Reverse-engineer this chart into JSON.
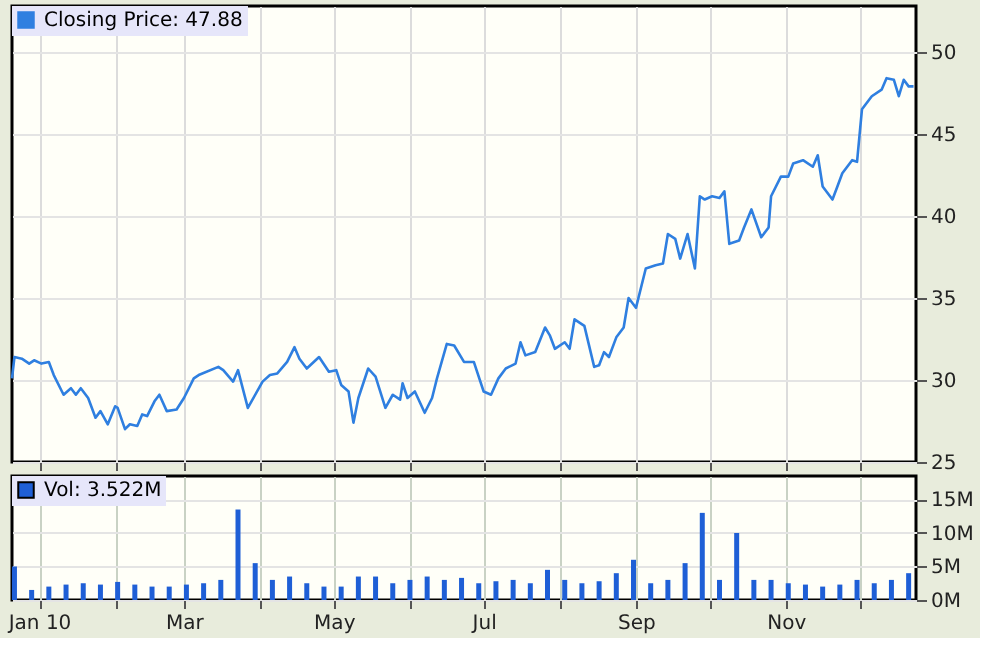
{
  "chart_data": [
    {
      "type": "line",
      "xlim": [
        "2009-12-21",
        "2010-12-24"
      ],
      "ylim": [
        25,
        52.8
      ],
      "yticks": [
        25,
        30,
        35,
        40,
        45,
        50
      ],
      "xticks": [
        {
          "value": "2010-01-01",
          "label": null
        },
        {
          "value": "2010-02-01",
          "label": null
        },
        {
          "value": "2010-03-01",
          "label": null
        },
        {
          "value": "2010-04-01",
          "label": null
        },
        {
          "value": "2010-05-01",
          "label": null
        },
        {
          "value": "2010-06-01",
          "label": null
        },
        {
          "value": "2010-07-01",
          "label": null
        },
        {
          "value": "2010-08-01",
          "label": null
        },
        {
          "value": "2010-09-01",
          "label": null
        },
        {
          "value": "2010-10-01",
          "label": null
        },
        {
          "value": "2010-11-01",
          "label": null
        },
        {
          "value": "2010-12-01",
          "label": null
        }
      ],
      "tick_labels": "y",
      "grid": true,
      "legend": "top left",
      "x": [
        "2009-12-21",
        "2009-12-22",
        "2009-12-25",
        "2009-12-28",
        "2009-12-30",
        "2010-01-02",
        "2010-01-05",
        "2010-01-07",
        "2010-01-11",
        "2010-01-14",
        "2010-01-16",
        "2010-01-18",
        "2010-01-21",
        "2010-01-24",
        "2010-01-26",
        "2010-01-29",
        "2010-02-01",
        "2010-02-02",
        "2010-02-05",
        "2010-02-07",
        "2010-02-10",
        "2010-02-12",
        "2010-02-14",
        "2010-02-17",
        "2010-02-19",
        "2010-02-22",
        "2010-02-26",
        "2010-03-01",
        "2010-03-05",
        "2010-03-07",
        "2010-03-15",
        "2010-03-17",
        "2010-03-21",
        "2010-03-23",
        "2010-03-27",
        "2010-04-02",
        "2010-04-05",
        "2010-04-08",
        "2010-04-12",
        "2010-04-15",
        "2010-04-17",
        "2010-04-20",
        "2010-04-25",
        "2010-04-29",
        "2010-05-02",
        "2010-05-04",
        "2010-05-07",
        "2010-05-09",
        "2010-05-11",
        "2010-05-15",
        "2010-05-18",
        "2010-05-22",
        "2010-05-25",
        "2010-05-28",
        "2010-05-29",
        "2010-05-31",
        "2010-06-03",
        "2010-06-07",
        "2010-06-10",
        "2010-06-12",
        "2010-06-16",
        "2010-06-19",
        "2010-06-23",
        "2010-06-27",
        "2010-07-01",
        "2010-07-04",
        "2010-07-07",
        "2010-07-10",
        "2010-07-14",
        "2010-07-16",
        "2010-07-18",
        "2010-07-22",
        "2010-07-26",
        "2010-07-28",
        "2010-07-30",
        "2010-08-03",
        "2010-08-05",
        "2010-08-07",
        "2010-08-11",
        "2010-08-15",
        "2010-08-17",
        "2010-08-19",
        "2010-08-21",
        "2010-08-24",
        "2010-08-27",
        "2010-08-29",
        "2010-09-01",
        "2010-09-05",
        "2010-09-09",
        "2010-09-12",
        "2010-09-14",
        "2010-09-17",
        "2010-09-19",
        "2010-09-22",
        "2010-09-25",
        "2010-09-27",
        "2010-09-29",
        "2010-10-02",
        "2010-10-05",
        "2010-10-07",
        "2010-10-09",
        "2010-10-13",
        "2010-10-15",
        "2010-10-18",
        "2010-10-22",
        "2010-10-25",
        "2010-10-26",
        "2010-10-30",
        "2010-11-02",
        "2010-11-04",
        "2010-11-08",
        "2010-11-12",
        "2010-11-14",
        "2010-11-16",
        "2010-11-20",
        "2010-11-22",
        "2010-11-24",
        "2010-11-28",
        "2010-11-30",
        "2010-12-02",
        "2010-12-06",
        "2010-12-10",
        "2010-12-12",
        "2010-12-15",
        "2010-12-17",
        "2010-12-19",
        "2010-12-21",
        "2010-12-23"
      ],
      "series": [
        {
          "name": "Closing Price: 47.88",
          "color": "#2f7fe0",
          "values": [
            30.1,
            31.4,
            31.3,
            31.0,
            31.2,
            31.0,
            31.1,
            30.3,
            29.1,
            29.5,
            29.1,
            29.5,
            28.9,
            27.7,
            28.1,
            27.3,
            28.4,
            28.3,
            27.0,
            27.3,
            27.2,
            27.9,
            27.8,
            28.7,
            29.1,
            28.1,
            28.2,
            28.9,
            30.1,
            30.3,
            30.8,
            30.6,
            29.9,
            30.6,
            28.3,
            29.9,
            30.3,
            30.4,
            31.1,
            32.0,
            31.3,
            30.7,
            31.4,
            30.5,
            30.6,
            29.7,
            29.3,
            27.4,
            28.9,
            30.7,
            30.2,
            28.3,
            29.1,
            28.8,
            29.8,
            28.9,
            29.3,
            28.0,
            28.9,
            30.1,
            32.2,
            32.1,
            31.1,
            31.1,
            29.3,
            29.1,
            30.1,
            30.7,
            31.0,
            32.3,
            31.5,
            31.7,
            33.2,
            32.7,
            31.9,
            32.3,
            31.9,
            33.7,
            33.3,
            30.8,
            30.9,
            31.7,
            31.4,
            32.6,
            33.2,
            35.0,
            34.4,
            36.8,
            37.0,
            37.1,
            38.9,
            38.6,
            37.4,
            38.9,
            36.8,
            41.2,
            41.0,
            41.2,
            41.1,
            41.5,
            38.3,
            38.5,
            39.3,
            40.4,
            38.7,
            39.3,
            41.2,
            42.4,
            42.4,
            43.2,
            43.4,
            43.0,
            43.7,
            41.8,
            41.0,
            41.8,
            42.6,
            43.4,
            43.3,
            46.5,
            47.3,
            47.7,
            48.4,
            48.3,
            47.3,
            48.3,
            47.9,
            47.9
          ]
        }
      ]
    },
    {
      "type": "bar",
      "xlim": [
        "2009-12-21",
        "2010-12-24"
      ],
      "ylim": [
        0,
        18.5
      ],
      "yticks": [
        {
          "value": 0,
          "label": "0M"
        },
        {
          "value": 5,
          "label": "5M"
        },
        {
          "value": 10,
          "label": "10M"
        },
        {
          "value": 15,
          "label": "15M"
        }
      ],
      "xticks": [
        {
          "value": "2010-01-01",
          "label": "Jan 10"
        },
        {
          "value": "2010-02-01",
          "label": null
        },
        {
          "value": "2010-03-01",
          "label": "Mar"
        },
        {
          "value": "2010-04-01",
          "label": null
        },
        {
          "value": "2010-05-01",
          "label": "May"
        },
        {
          "value": "2010-06-01",
          "label": null
        },
        {
          "value": "2010-07-01",
          "label": "Jul"
        },
        {
          "value": "2010-08-01",
          "label": null
        },
        {
          "value": "2010-09-01",
          "label": "Sep"
        },
        {
          "value": "2010-10-01",
          "label": null
        },
        {
          "value": "2010-11-01",
          "label": "Nov"
        },
        {
          "value": "2010-12-01",
          "label": null
        }
      ],
      "grid": true,
      "legend": "top left",
      "x": [
        "2009-12-22",
        "2009-12-29",
        "2010-01-05",
        "2010-01-12",
        "2010-01-19",
        "2010-01-26",
        "2010-02-02",
        "2010-02-09",
        "2010-02-16",
        "2010-02-23",
        "2010-03-02",
        "2010-03-09",
        "2010-03-16",
        "2010-03-23",
        "2010-03-30",
        "2010-04-06",
        "2010-04-13",
        "2010-04-20",
        "2010-04-27",
        "2010-05-04",
        "2010-05-11",
        "2010-05-18",
        "2010-05-25",
        "2010-06-01",
        "2010-06-08",
        "2010-06-15",
        "2010-06-22",
        "2010-06-29",
        "2010-07-06",
        "2010-07-13",
        "2010-07-20",
        "2010-07-27",
        "2010-08-03",
        "2010-08-10",
        "2010-08-17",
        "2010-08-24",
        "2010-08-31",
        "2010-09-07",
        "2010-09-14",
        "2010-09-21",
        "2010-09-28",
        "2010-10-05",
        "2010-10-12",
        "2010-10-19",
        "2010-10-26",
        "2010-11-02",
        "2010-11-09",
        "2010-11-16",
        "2010-11-23",
        "2010-11-30",
        "2010-12-07",
        "2010-12-14",
        "2010-12-21"
      ],
      "series": [
        {
          "name": "Vol: 3.522M",
          "color": "#1f5fd6",
          "values": [
            5.0,
            1.5,
            2.0,
            2.3,
            2.5,
            2.3,
            2.7,
            2.3,
            2.0,
            2.0,
            2.3,
            2.5,
            3.0,
            13.5,
            5.5,
            3.0,
            3.5,
            2.5,
            2.0,
            2.0,
            3.5,
            3.5,
            2.5,
            3.0,
            3.5,
            3.0,
            3.3,
            2.5,
            2.8,
            3.0,
            2.5,
            4.5,
            3.0,
            2.5,
            2.8,
            4.0,
            6.0,
            2.5,
            3.0,
            5.5,
            13.0,
            3.0,
            10.0,
            3.0,
            3.0,
            2.5,
            2.3,
            2.0,
            2.3,
            3.0,
            2.5,
            3.0,
            4.0
          ]
        }
      ]
    }
  ]
}
